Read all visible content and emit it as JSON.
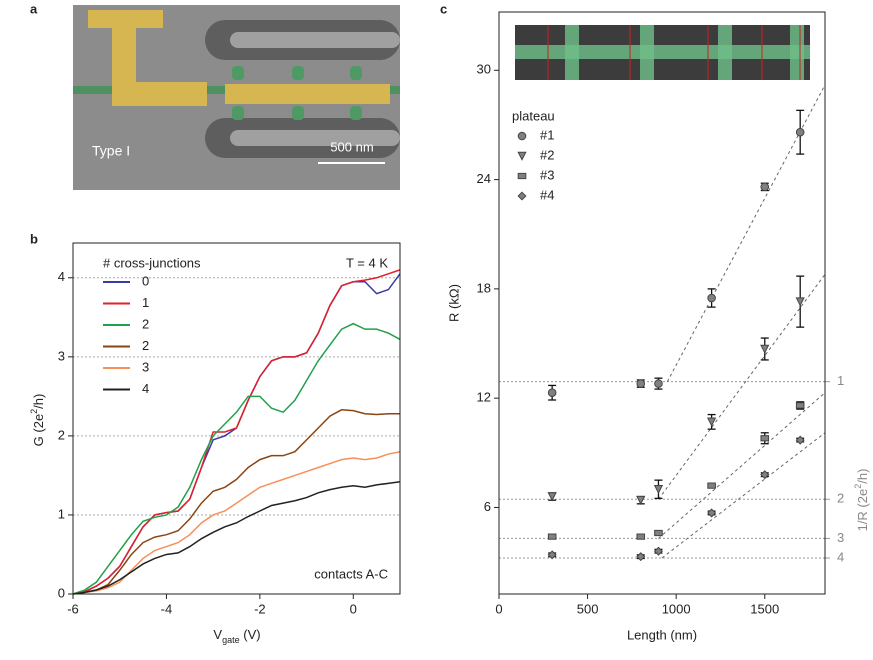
{
  "panel_labels": [
    "a",
    "b",
    "c"
  ],
  "image": {
    "label": "Type I",
    "scale_bar": "500 nm"
  },
  "chart_data": [
    {
      "type": "line",
      "xlabel": [
        "V",
        "gate",
        " (V)"
      ],
      "ylabel": [
        "G (2e",
        "2",
        "/h)"
      ],
      "legend_title": "# cross-junctions",
      "annotations": [
        "T = 4 K",
        "contacts A-C"
      ],
      "xlim": [
        -6,
        1
      ],
      "xticks": [
        -6,
        -4,
        -2,
        0
      ],
      "ylim": [
        0,
        4.44
      ],
      "yticks": [
        0,
        1,
        2,
        3,
        4
      ],
      "grid": true,
      "x": [
        -6,
        -5.75,
        -5.5,
        -5.25,
        -5,
        -4.75,
        -4.5,
        -4.25,
        -4,
        -3.75,
        -3.5,
        -3.25,
        -3,
        -2.75,
        -2.5,
        -2.25,
        -2,
        -1.75,
        -1.5,
        -1.25,
        -1,
        -0.75,
        -0.5,
        -0.25,
        0,
        0.25,
        0.5,
        0.75,
        1
      ],
      "series": [
        {
          "name": "0",
          "color": "#3a3aa8",
          "values": [
            0,
            0.03,
            0.1,
            0.2,
            0.35,
            0.6,
            0.85,
            1.0,
            1.03,
            1.05,
            1.2,
            1.6,
            1.95,
            2.0,
            2.1,
            2.45,
            2.75,
            2.95,
            3.0,
            3.0,
            3.05,
            3.3,
            3.65,
            3.9,
            3.95,
            3.95,
            3.8,
            3.85,
            4.05
          ]
        },
        {
          "name": "1",
          "color": "#e0202a",
          "values": [
            0,
            0.03,
            0.1,
            0.2,
            0.35,
            0.6,
            0.85,
            1.0,
            1.03,
            1.05,
            1.2,
            1.6,
            2.05,
            2.05,
            2.1,
            2.45,
            2.75,
            2.95,
            3.0,
            3.0,
            3.05,
            3.3,
            3.65,
            3.9,
            3.95,
            3.97,
            4.0,
            4.05,
            4.1
          ]
        },
        {
          "name": "2",
          "color": "#23a04a",
          "values": [
            0,
            0.05,
            0.15,
            0.35,
            0.55,
            0.75,
            0.92,
            0.97,
            1.0,
            1.1,
            1.35,
            1.7,
            2.0,
            2.15,
            2.3,
            2.5,
            2.5,
            2.35,
            2.3,
            2.45,
            2.7,
            2.95,
            3.15,
            3.35,
            3.42,
            3.35,
            3.35,
            3.3,
            3.22
          ]
        },
        {
          "name": "2",
          "color": "#8b4513",
          "values": [
            0,
            0.02,
            0.05,
            0.12,
            0.3,
            0.5,
            0.65,
            0.72,
            0.75,
            0.8,
            0.95,
            1.15,
            1.3,
            1.35,
            1.45,
            1.6,
            1.7,
            1.75,
            1.75,
            1.8,
            1.95,
            2.1,
            2.25,
            2.33,
            2.32,
            2.28,
            2.27,
            2.28,
            2.28
          ]
        },
        {
          "name": "3",
          "color": "#f5905a",
          "values": [
            0,
            0.02,
            0.04,
            0.08,
            0.15,
            0.3,
            0.45,
            0.55,
            0.6,
            0.65,
            0.75,
            0.9,
            1.0,
            1.05,
            1.15,
            1.25,
            1.35,
            1.4,
            1.45,
            1.5,
            1.55,
            1.6,
            1.65,
            1.7,
            1.72,
            1.7,
            1.72,
            1.77,
            1.8
          ]
        },
        {
          "name": "4",
          "color": "#222222",
          "values": [
            0,
            0.02,
            0.05,
            0.1,
            0.18,
            0.28,
            0.38,
            0.45,
            0.5,
            0.52,
            0.6,
            0.7,
            0.78,
            0.85,
            0.9,
            0.98,
            1.05,
            1.12,
            1.15,
            1.18,
            1.22,
            1.28,
            1.32,
            1.35,
            1.37,
            1.35,
            1.38,
            1.4,
            1.42
          ]
        }
      ]
    },
    {
      "type": "scatter",
      "xlabel": "Length (nm)",
      "ylabel": "R (kΩ)",
      "y2label": [
        "1/R (2e",
        "2",
        "/h)"
      ],
      "legend_title": "plateau",
      "xlim": [
        0,
        1840
      ],
      "xticks": [
        0,
        500,
        1000,
        1500
      ],
      "ylim": [
        1.25,
        33.2
      ],
      "yticks": [
        6,
        12,
        18,
        24,
        30
      ],
      "y2scale": "reciprocal",
      "y2ticks": [
        1,
        2,
        3,
        4
      ],
      "y2grid": true,
      "series": [
        {
          "name": "#1",
          "marker": "circle",
          "color": "#808080",
          "x": [
            300,
            800,
            900,
            1200,
            1500,
            1700
          ],
          "values": [
            12.3,
            12.8,
            12.8,
            17.5,
            23.6,
            26.6
          ],
          "errors": [
            0.4,
            0.2,
            0.3,
            0.5,
            0.2,
            1.2
          ]
        },
        {
          "name": "#2",
          "marker": "triangle-down",
          "color": "#808080",
          "x": [
            300,
            800,
            900,
            1200,
            1500,
            1700
          ],
          "values": [
            6.6,
            6.4,
            7.0,
            10.7,
            14.7,
            17.3
          ],
          "errors": [
            0.2,
            0.2,
            0.5,
            0.4,
            0.6,
            1.4
          ]
        },
        {
          "name": "#3",
          "marker": "square",
          "color": "#808080",
          "x": [
            300,
            800,
            900,
            1200,
            1500,
            1700
          ],
          "values": [
            4.4,
            4.4,
            4.6,
            7.2,
            9.8,
            11.6
          ],
          "errors": [
            0.1,
            0.1,
            0.1,
            0.1,
            0.3,
            0.2
          ]
        },
        {
          "name": "#4",
          "marker": "diamond",
          "color": "#808080",
          "x": [
            300,
            800,
            900,
            1200,
            1500,
            1700
          ],
          "values": [
            3.4,
            3.3,
            3.6,
            5.7,
            7.8,
            9.7
          ],
          "errors": [
            0.1,
            0.1,
            0.1,
            0.1,
            0.1,
            0.1
          ]
        }
      ],
      "fits": [
        {
          "x": [
            950,
            1840
          ],
          "values": [
            12.9,
            29.2
          ]
        },
        {
          "x": [
            900,
            1840
          ],
          "values": [
            6.45,
            18.8
          ]
        },
        {
          "x": [
            900,
            1840
          ],
          "values": [
            4.3,
            12.3
          ]
        },
        {
          "x": [
            920,
            1840
          ],
          "values": [
            3.23,
            10.1
          ]
        }
      ]
    }
  ]
}
